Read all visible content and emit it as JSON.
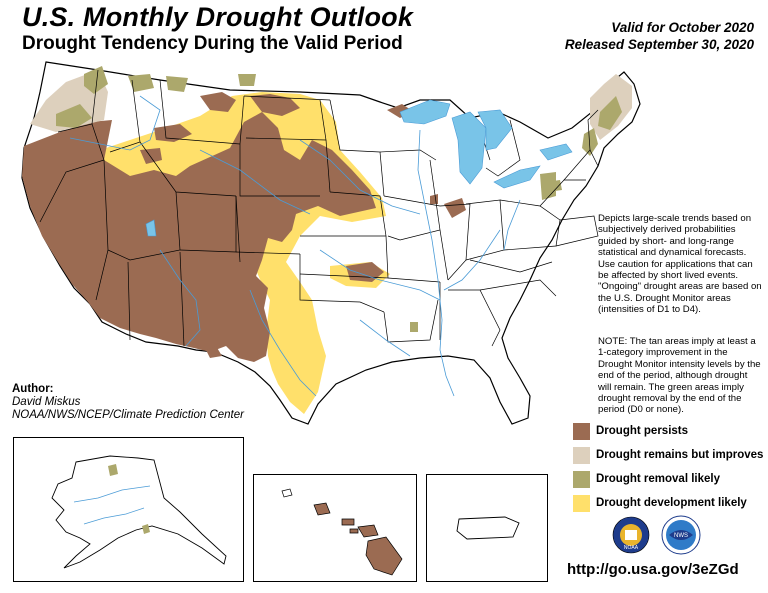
{
  "header": {
    "title": "U.S. Monthly Drought Outlook",
    "subtitle": "Drought Tendency During the Valid Period",
    "valid": "Valid for October 2020",
    "released": "Released September 30, 2020"
  },
  "description": "Depicts large-scale trends based on subjectively derived probabilities guided by short- and long-range statistical and dynamical forecasts. Use caution for applications that can be affected by short lived events. \"Ongoing\" drought areas are based on the U.S. Drought Monitor areas (intensities of D1 to D4).",
  "note": "NOTE: The tan areas imply at least a 1-category improvement in the Drought Monitor intensity levels by the end of the period, although drought will remain. The green areas imply drought removal by the end of the period (D0 or none).",
  "author": {
    "label": "Author:",
    "name": "David Miskus",
    "org": "NOAA/NWS/NCEP/Climate Prediction Center"
  },
  "legend": [
    {
      "label": "Drought persists",
      "color": "#9B6B52"
    },
    {
      "label": "Drought remains but improves",
      "color": "#DDD0BD"
    },
    {
      "label": "Drought removal likely",
      "color": "#ACA86C"
    },
    {
      "label": "Drought development likely",
      "color": "#FFE06B"
    }
  ],
  "url": "http://go.usa.gov/3eZGd",
  "logos": [
    {
      "name": "noaa-nws-logo",
      "text": "NOAA"
    },
    {
      "name": "nws-logo",
      "text": "NWS"
    }
  ],
  "map": {
    "water_color": "#79C4E8",
    "river_color": "#4A9BD6",
    "border_color": "#000000"
  }
}
